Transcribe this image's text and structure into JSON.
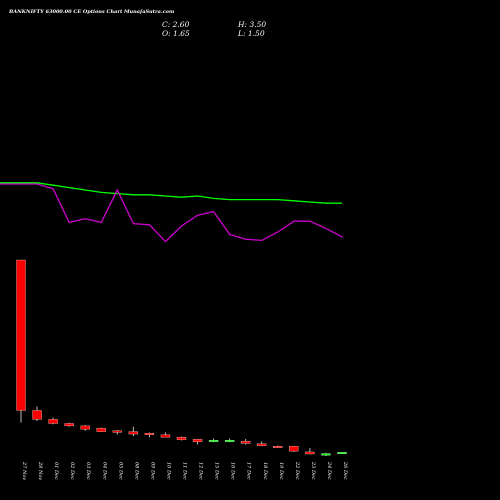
{
  "header": {
    "title": "BANKNIFTY 63000.00 CE Options Chart MunafaSutra.com",
    "close": "C: 2.60",
    "high": "H: 3.50",
    "open": "O: 1.65",
    "low": "L: 1.50"
  },
  "colors": {
    "background": "#000000",
    "bullish": "#00ff00",
    "bearish": "#ff0000",
    "line_ma": "#00ff00",
    "line_indicator": "#cc00cc",
    "text": "#ffffff"
  },
  "chart_data": [
    {
      "type": "line",
      "title": "",
      "x": [
        "27 Nov",
        "28 Nov",
        "01 Dec",
        "02 Dec",
        "03 Dec",
        "04 Dec",
        "05 Dec",
        "08 Dec",
        "09 Dec",
        "10 Dec",
        "11 Dec",
        "12 Dec",
        "15 Dec",
        "16 Dec",
        "17 Dec",
        "18 Dec",
        "19 Dec",
        "22 Dec",
        "23 Dec",
        "24 Dec",
        "26 Dec"
      ],
      "series": [
        {
          "values": [
            56,
            56,
            54,
            52,
            50,
            48,
            47,
            46,
            46,
            45,
            44,
            45,
            43,
            42,
            42,
            42,
            42,
            41,
            40,
            39,
            39
          ]
        },
        {
          "values": [
            55,
            55,
            51,
            23,
            26,
            23,
            50,
            22,
            21,
            7,
            20,
            29,
            32,
            13,
            9,
            8,
            15,
            24,
            24,
            18,
            11
          ]
        }
      ],
      "ylim": [
        0,
        100
      ]
    },
    {
      "type": "candlestick",
      "categories": [
        "27 Nov",
        "28 Nov",
        "01 Dec",
        "02 Dec",
        "03 Dec",
        "04 Dec",
        "05 Dec",
        "08 Dec",
        "09 Dec",
        "10 Dec",
        "11 Dec",
        "12 Dec",
        "15 Dec",
        "16 Dec",
        "17 Dec",
        "18 Dec",
        "19 Dec",
        "22 Dec",
        "23 Dec",
        "24 Dec",
        "26 Dec"
      ],
      "candles": [
        {
          "open": 22.0,
          "high": 22.0,
          "low": 2.0,
          "close": 3.5
        },
        {
          "open": 3.5,
          "high": 4.0,
          "low": 2.2,
          "close": 2.4
        },
        {
          "open": 2.4,
          "high": 2.6,
          "low": 1.8,
          "close": 1.9
        },
        {
          "open": 1.9,
          "high": 2.0,
          "low": 1.5,
          "close": 1.6
        },
        {
          "open": 1.6,
          "high": 1.7,
          "low": 1.0,
          "close": 1.2
        },
        {
          "open": 1.3,
          "high": 1.4,
          "low": 0.85,
          "close": 0.9
        },
        {
          "open": 1.0,
          "high": 1.1,
          "low": 0.55,
          "close": 0.8
        },
        {
          "open": 0.9,
          "high": 1.5,
          "low": 0.35,
          "close": 0.6
        },
        {
          "open": 0.7,
          "high": 0.8,
          "low": 0.2,
          "close": 0.65
        },
        {
          "open": 0.5,
          "high": 0.8,
          "low": 0.3,
          "close": 0.2
        },
        {
          "open": 0.2,
          "high": 0.3,
          "low": -0.2,
          "close": -0.1
        },
        {
          "open": -0.05,
          "high": 0.0,
          "low": -0.7,
          "close": -0.35
        },
        {
          "open": -0.25,
          "high": 0.05,
          "low": -0.4,
          "close": -0.15
        },
        {
          "open": -0.25,
          "high": 0.05,
          "low": -0.4,
          "close": -0.15
        },
        {
          "open": -0.3,
          "high": 0.0,
          "low": -0.7,
          "close": -0.55
        },
        {
          "open": -0.6,
          "high": -0.3,
          "low": -0.9,
          "close": -0.85
        },
        {
          "open": -0.9,
          "high": -0.8,
          "low": -1.05,
          "close": -1.0
        },
        {
          "open": -0.9,
          "high": -0.9,
          "low": -1.6,
          "close": -1.5
        },
        {
          "open": -1.6,
          "high": -1.1,
          "low": -1.9,
          "close": -1.85
        },
        {
          "open": -2.0,
          "high": -1.7,
          "low": -2.1,
          "close": -1.8
        },
        {
          "open": -1.65,
          "high": -1.65,
          "low": -1.65,
          "close": -1.65
        }
      ]
    }
  ]
}
